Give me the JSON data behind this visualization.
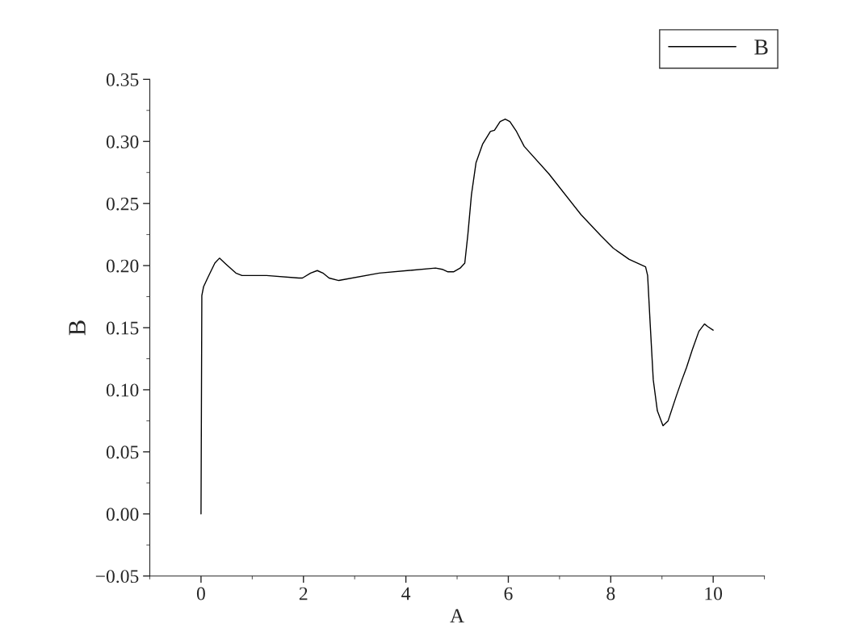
{
  "chart_data": {
    "type": "line",
    "xlabel": "A",
    "ylabel": "B",
    "legend": "top right",
    "grid": false,
    "marker": "none",
    "line_style": "solid",
    "xlim": [
      -1,
      11
    ],
    "xticks": [
      0,
      2,
      4,
      6,
      8,
      10
    ],
    "ylim": [
      -0.05,
      0.35
    ],
    "yticks": [
      {
        "value": -0.05,
        "label": "−0.05"
      },
      {
        "value": 0,
        "label": "0.00"
      },
      {
        "value": 0.05,
        "label": "0.05"
      },
      {
        "value": 0.1,
        "label": "0.10"
      },
      {
        "value": 0.15,
        "label": "0.15"
      },
      {
        "value": 0.2,
        "label": "0.20"
      },
      {
        "value": 0.25,
        "label": "0.25"
      },
      {
        "value": 0.3,
        "label": "0.30"
      },
      {
        "value": 0.35,
        "label": "0.35"
      }
    ],
    "series": [
      {
        "name": "B",
        "color": "#000000",
        "x": [
          0,
          0.016,
          0.05,
          0.14,
          0.27,
          0.36,
          0.49,
          0.68,
          0.8,
          1.28,
          1.91,
          1.98,
          2.14,
          2.27,
          2.38,
          2.5,
          2.69,
          3.48,
          4.58,
          4.71,
          4.82,
          4.93,
          5.06,
          5.15,
          5.21,
          5.28,
          5.37,
          5.5,
          5.65,
          5.73,
          5.84,
          5.94,
          6.03,
          6.16,
          6.31,
          6.79,
          7.42,
          7.81,
          8.05,
          8.36,
          8.68,
          8.72,
          8.77,
          8.83,
          8.91,
          9.02,
          9.12,
          9.28,
          9.39,
          9.48,
          9.59,
          9.72,
          9.83,
          9.89,
          10.0
        ],
        "values": [
          0,
          0.176,
          0.183,
          0.191,
          0.202,
          0.206,
          0.201,
          0.194,
          0.192,
          0.192,
          0.19,
          0.19,
          0.194,
          0.196,
          0.194,
          0.19,
          0.188,
          0.194,
          0.198,
          0.197,
          0.195,
          0.195,
          0.198,
          0.202,
          0.225,
          0.257,
          0.283,
          0.298,
          0.308,
          0.309,
          0.316,
          0.318,
          0.316,
          0.308,
          0.296,
          0.274,
          0.241,
          0.224,
          0.214,
          0.205,
          0.199,
          0.192,
          0.153,
          0.108,
          0.083,
          0.071,
          0.075,
          0.095,
          0.108,
          0.118,
          0.132,
          0.147,
          0.153,
          0.151,
          0.148
        ]
      }
    ]
  }
}
